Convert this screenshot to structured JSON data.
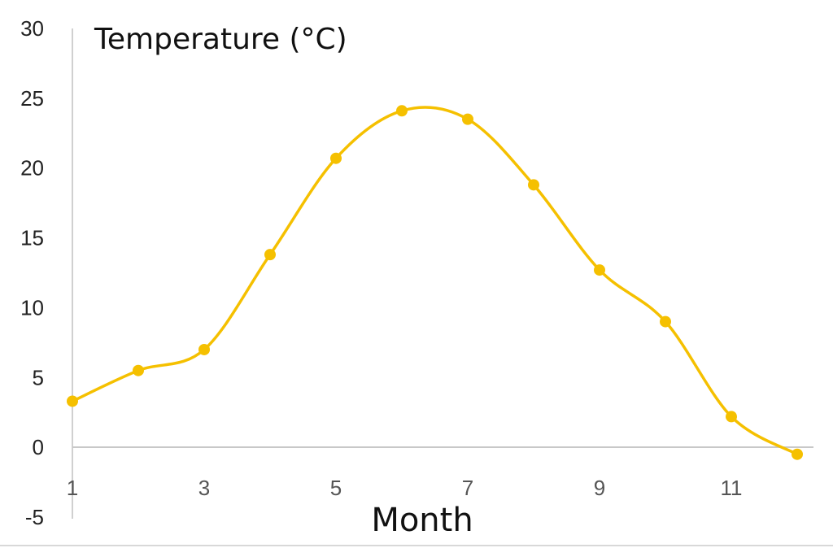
{
  "chart_data": {
    "type": "line",
    "smooth": true,
    "title": "",
    "ylabel": "Temperature (°C)",
    "xlabel": "Month",
    "x": [
      1,
      2,
      3,
      4,
      5,
      6,
      7,
      8,
      9,
      10,
      11,
      12
    ],
    "series": [
      {
        "name": "",
        "color": "#F5C000",
        "values": [
          3.3,
          5.5,
          7.0,
          13.8,
          20.7,
          24.1,
          23.5,
          18.8,
          12.7,
          9.0,
          2.2,
          -0.5
        ]
      }
    ],
    "xlim": [
      1,
      12
    ],
    "ylim": [
      -5,
      30
    ],
    "xticks": [
      "1",
      "3",
      "5",
      "7",
      "9",
      "11"
    ],
    "yticks": [
      "30",
      "25",
      "20",
      "15",
      "10",
      "5",
      "0",
      "-5"
    ],
    "grid": false,
    "legend": "none"
  }
}
